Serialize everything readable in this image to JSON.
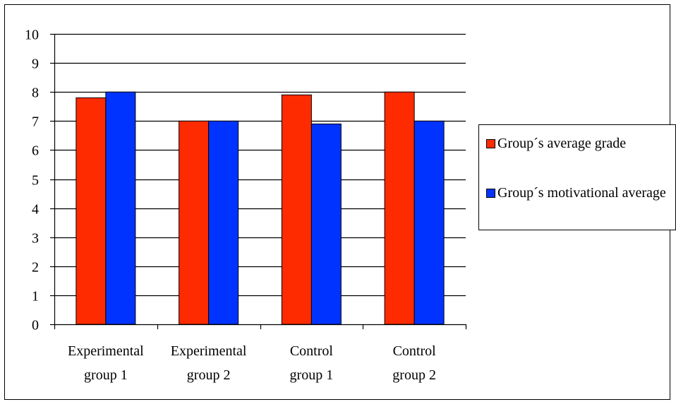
{
  "chart_data": {
    "type": "bar",
    "categories": [
      [
        "Experimental",
        "group 1"
      ],
      [
        "Experimental",
        "group 2"
      ],
      [
        "Control",
        "group 1"
      ],
      [
        "Control",
        "group 2"
      ]
    ],
    "series": [
      {
        "name": "Group´s average grade",
        "color": "#ff2b00",
        "values": [
          7.8,
          7.0,
          7.9,
          8.0
        ]
      },
      {
        "name": "Group´s motivational average",
        "color": "#0033ff",
        "values": [
          8.0,
          7.0,
          6.9,
          7.0
        ]
      }
    ],
    "ylim": [
      0,
      10
    ],
    "yticks": [
      "0",
      "1",
      "2",
      "3",
      "4",
      "5",
      "6",
      "7",
      "8",
      "9",
      "10"
    ],
    "grid": true,
    "legend_position": "right",
    "title": "",
    "xlabel": "",
    "ylabel": ""
  },
  "legend": {
    "items": [
      {
        "label": "Group´s average grade"
      },
      {
        "label": "Group´s motivational average"
      }
    ]
  }
}
